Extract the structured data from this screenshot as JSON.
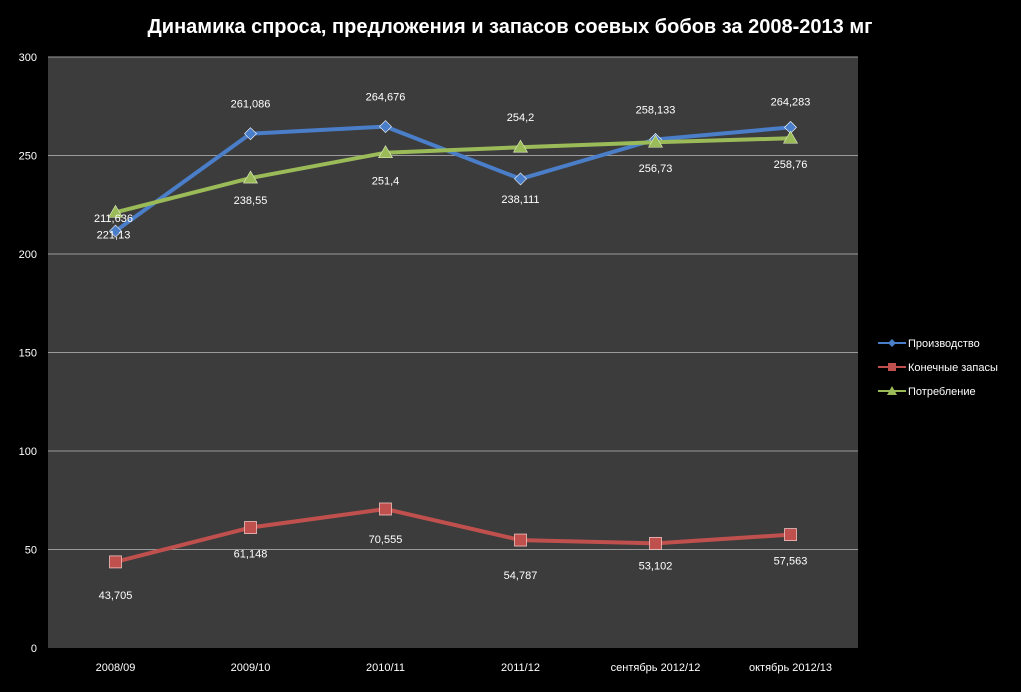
{
  "chart_data": {
    "type": "line",
    "title": "Динамика спроса, предложения и запасов соевых бобов за 2008-2013 мг",
    "xlabel": "",
    "ylabel": "",
    "categories": [
      "2008/09",
      "2009/10",
      "2010/11",
      "2011/12",
      "сентябрь 2012/12",
      "октябрь 2012/13"
    ],
    "ylim": [
      0,
      300
    ],
    "yticks": [
      0,
      50,
      100,
      150,
      200,
      250,
      300
    ],
    "grid": true,
    "legend_position": "right",
    "colors": {
      "background": "#000000",
      "plot_area": "#3c3c3c",
      "grid": "#9a9a9a"
    },
    "series": [
      {
        "name": "Производство",
        "marker": "diamond",
        "color": "#4a7ec9",
        "values": [
          211.636,
          261.086,
          264.676,
          238.111,
          258.133,
          264.283
        ],
        "labels": [
          "211,636",
          "261,086",
          "264,676",
          "238,111",
          "258,133",
          "264,283"
        ]
      },
      {
        "name": "Конечные запасы",
        "marker": "square",
        "color": "#c0504d",
        "values": [
          43.705,
          61.148,
          70.555,
          54.787,
          53.102,
          57.563
        ],
        "labels": [
          "43,705",
          "61,148",
          "70,555",
          "54,787",
          "53,102",
          "57,563"
        ]
      },
      {
        "name": "Потребление",
        "marker": "triangle",
        "color": "#9bbb59",
        "values": [
          221.13,
          238.55,
          251.4,
          254.2,
          256.73,
          258.76
        ],
        "labels": [
          "221,13",
          "238,55",
          "251,4",
          "254,2",
          "256,73",
          "258,76"
        ]
      }
    ]
  }
}
